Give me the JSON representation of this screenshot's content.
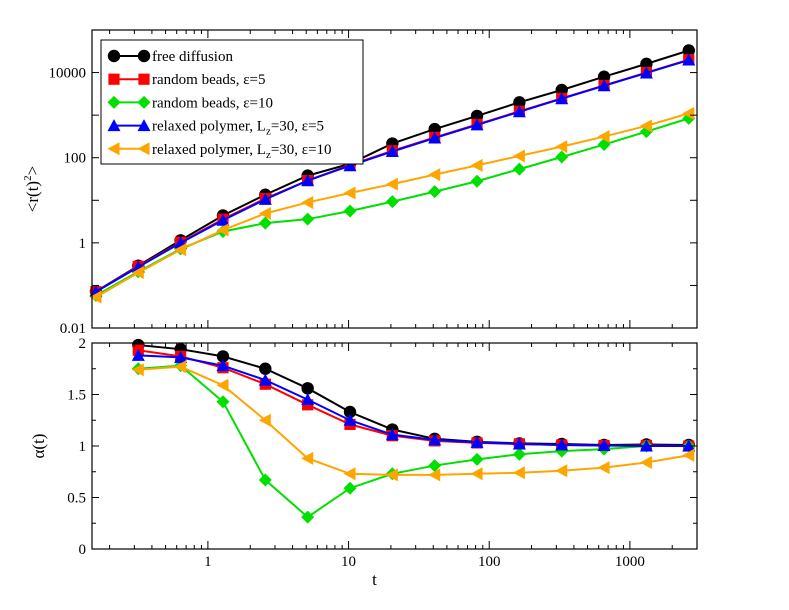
{
  "chart_data": [
    {
      "type": "line",
      "scale": "log-log",
      "xlabel": "",
      "ylabel": "<r(t)²>",
      "ylabel_main": "<r(t)",
      "ylabel_sup": "2",
      "ylabel_end": ">",
      "xlim": [
        0.15,
        3000
      ],
      "ylim": [
        0.01,
        100000
      ],
      "yticks": [
        0.01,
        1,
        100,
        10000
      ],
      "ytick_labels": [
        "0.01",
        "1",
        "100",
        "10000"
      ],
      "x": [
        0.16,
        0.32,
        0.64,
        1.28,
        2.56,
        5.12,
        10.24,
        20.48,
        40.96,
        81.92,
        163.84,
        327.68,
        655.36,
        1310.72,
        2621.44
      ],
      "legend_position": "top-left",
      "series": [
        {
          "name": "free diffusion",
          "color": "#000000",
          "marker": "circle",
          "values": [
            0.072,
            0.29,
            1.15,
            4.4,
            13.5,
            38,
            72,
            215,
            470,
            960,
            2000,
            3900,
            8000,
            16000,
            33000
          ]
        },
        {
          "name": "random beads, ε=5",
          "color": "#ff0000",
          "marker": "square",
          "values": [
            0.071,
            0.28,
            1.03,
            3.6,
            11,
            29,
            67,
            145,
            300,
            605,
            1230,
            2480,
            4980,
            9980,
            20000
          ]
        },
        {
          "name": "random beads, ε=10",
          "color": "#00e000",
          "marker": "diamond",
          "values": [
            0.058,
            0.21,
            0.72,
            1.85,
            2.9,
            3.6,
            5.6,
            9.3,
            16,
            28,
            54,
            104,
            204,
            410,
            840
          ]
        },
        {
          "name": "relaxed polymer, Lz=30, ε=5",
          "color": "#0000ff",
          "marker": "triangle-up",
          "values": [
            0.071,
            0.27,
            1.0,
            3.4,
            10.5,
            29,
            65,
            140,
            290,
            590,
            1200,
            2430,
            4900,
            9800,
            19700
          ]
        },
        {
          "name": "relaxed polymer, Lz=30, ε=10",
          "color": "#ffa500",
          "marker": "triangle-left",
          "values": [
            0.053,
            0.2,
            0.69,
            2.0,
            4.9,
            8.9,
            14.8,
            24,
            40,
            66,
            110,
            182,
            314,
            560,
            1100
          ]
        }
      ],
      "legend_labels": [
        {
          "main": "free diffusion",
          "sub": "",
          "tail": ""
        },
        {
          "main": "random beads, ε=5",
          "sub": "",
          "tail": ""
        },
        {
          "main": "random beads, ε=10",
          "sub": "",
          "tail": ""
        },
        {
          "main": "relaxed polymer, L",
          "sub": "z",
          "tail": "=30, ε=5"
        },
        {
          "main": "relaxed polymer, L",
          "sub": "z",
          "tail": "=30, ε=10"
        }
      ]
    },
    {
      "type": "line",
      "scale": "semilog-x",
      "xlabel": "t",
      "ylabel": "α(t)",
      "xlim": [
        0.15,
        3000
      ],
      "ylim": [
        0,
        2
      ],
      "xticks": [
        1,
        10,
        100,
        1000
      ],
      "xtick_labels": [
        "1",
        "10",
        "100",
        "1000"
      ],
      "yticks": [
        0,
        0.5,
        1,
        1.5,
        2
      ],
      "ytick_labels": [
        "0",
        "0.5",
        "1",
        "1.5",
        "2"
      ],
      "x": [
        0.32,
        0.64,
        1.28,
        2.56,
        5.12,
        10.24,
        20.48,
        40.96,
        81.92,
        163.84,
        327.68,
        655.36,
        1310.72,
        2621.44
      ],
      "series": [
        {
          "name": "free diffusion",
          "color": "#000000",
          "marker": "circle",
          "values": [
            1.98,
            1.94,
            1.87,
            1.75,
            1.56,
            1.33,
            1.16,
            1.07,
            1.04,
            1.025,
            1.02,
            1.01,
            1.015,
            1.01
          ]
        },
        {
          "name": "random beads, ε=5",
          "color": "#ff0000",
          "marker": "square",
          "values": [
            1.93,
            1.87,
            1.76,
            1.6,
            1.4,
            1.21,
            1.1,
            1.05,
            1.03,
            1.02,
            1.01,
            1.005,
            1.005,
            1.0
          ]
        },
        {
          "name": "random beads, ε=10",
          "color": "#00e000",
          "marker": "diamond",
          "values": [
            1.75,
            1.78,
            1.43,
            0.67,
            0.31,
            0.59,
            0.73,
            0.81,
            0.87,
            0.92,
            0.95,
            0.97,
            1.0,
            1.0
          ]
        },
        {
          "name": "relaxed polymer, Lz=30, ε=5",
          "color": "#0000ff",
          "marker": "triangle-up",
          "values": [
            1.88,
            1.86,
            1.78,
            1.64,
            1.45,
            1.25,
            1.11,
            1.06,
            1.035,
            1.02,
            1.01,
            1.005,
            1.0,
            1.0
          ]
        },
        {
          "name": "relaxed polymer, Lz=30, ε=10",
          "color": "#ffa500",
          "marker": "triangle-left",
          "values": [
            1.74,
            1.77,
            1.59,
            1.25,
            0.88,
            0.73,
            0.72,
            0.72,
            0.73,
            0.74,
            0.76,
            0.79,
            0.84,
            0.91
          ]
        }
      ]
    }
  ]
}
